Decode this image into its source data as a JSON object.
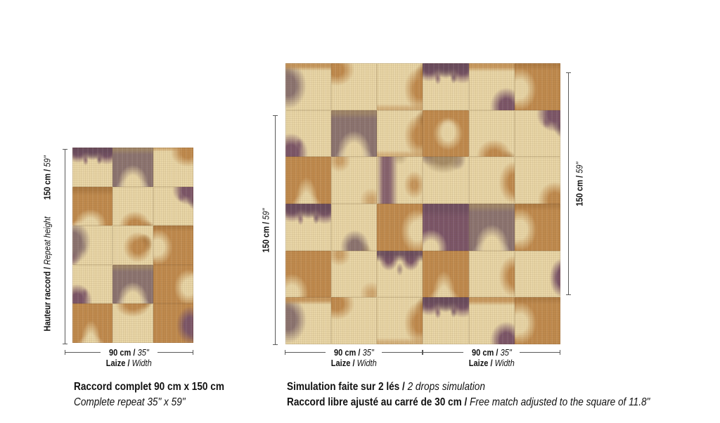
{
  "palette": {
    "cream": "#e9d6a6",
    "cream_light": "#f3e7c4",
    "tan": "#c08a4d",
    "tan_dark": "#a3713a",
    "purple": "#7b5568",
    "purple_dark": "#684a5c",
    "gray_purple": "#8b7370",
    "gray_tan": "#a68c66",
    "text": "#111111",
    "dimension_line": "#5a5a5a"
  },
  "left_diagram": {
    "height_label_bold": "Hauteur raccord /",
    "height_label_italic": "Repeat height",
    "height_value_bold": "150 cm /",
    "height_value_italic": "59\"",
    "width_value_bold": "90 cm /",
    "width_value_italic": "35\"",
    "laize_bold": "Laize /",
    "laize_italic": "Width",
    "caption_fr": "Raccord complet 90 cm x 150 cm",
    "caption_en": "Complete repeat 35\" x 59\"",
    "grid": {
      "cols": 3,
      "rows": 5,
      "tiles": [
        "purple_m",
        "gray_arch",
        "tan_tr",
        "tan_cream_b",
        "cream_tan_b",
        "purple_tr",
        "purple_left",
        "cream_tan_c",
        "tan_cream_l",
        "purple_bl",
        "gray_arch",
        "tan_cream_r",
        "tan_cream_peak",
        "cream_tan_top",
        "tan_purple_r"
      ]
    }
  },
  "right_diagram": {
    "height_left_bold": "150 cm /",
    "height_left_italic": "59\"",
    "height_right_bold": "150 cm /",
    "height_right_italic": "59\"",
    "drops": [
      {
        "width_value_bold": "90 cm /",
        "width_value_italic": "35\"",
        "laize_bold": "Laize /",
        "laize_italic": "Width"
      },
      {
        "width_value_bold": "90 cm /",
        "width_value_italic": "35\"",
        "laize_bold": "Laize /",
        "laize_italic": "Width"
      }
    ],
    "caption_line1_bold": "Simulation faite sur 2 lés /",
    "caption_line1_italic": "2 drops simulation",
    "caption_line2_bold": "Raccord libre ajusté au carré de 30 cm /",
    "caption_line2_italic": "Free match adjusted to the square of 11.8\"",
    "grid": {
      "cols": 6,
      "rows": 6,
      "tiles": [
        "gray_left",
        "tan_tl",
        "tan_r",
        "purple_m",
        "purple_br",
        "tan_cream_l",
        "purple_bl",
        "gray_arch",
        "tan_r",
        "tan_cream_c",
        "cream_tan_b",
        "purple_tr",
        "tan_cream_peak",
        "cream_tan_soft",
        "purple_band",
        "gray_top",
        "cream_tan_r",
        "cream_tan_br",
        "purple_m",
        "cream_gray_u",
        "tan_cream_r",
        "purple_cream_bl",
        "gray_arch",
        "tan_cream_l",
        "tan_cream_bl",
        "cream_tan_soft",
        "purple_top_peak",
        "tan_cream_peak",
        "cream_tan_r",
        "cream_purple_r",
        "gray_left",
        "tan_tl",
        "tan_r",
        "purple_m",
        "purple_br",
        "tan_cream_l"
      ]
    }
  }
}
